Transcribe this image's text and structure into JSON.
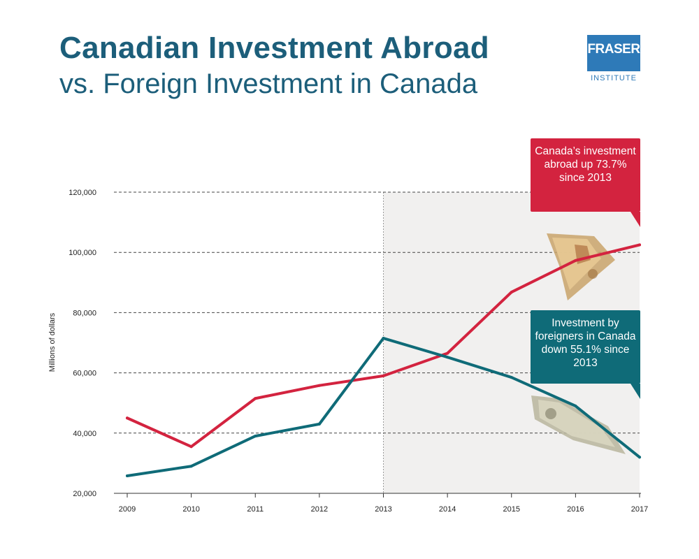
{
  "header": {
    "title": "Canadian Investment Abroad",
    "subtitle": "vs. Foreign Investment in Canada"
  },
  "logo": {
    "main": "FRASER",
    "sub": "INSTITUTE",
    "color": "#2e7ab8"
  },
  "chart_data": {
    "type": "line",
    "title": "Canadian Investment Abroad vs. Foreign Investment in Canada",
    "xlabel": "",
    "ylabel": "Millions of dollars",
    "categories": [
      "2009",
      "2010",
      "2011",
      "2012",
      "2013",
      "2014",
      "2015",
      "2016",
      "2017"
    ],
    "ylim": [
      20000,
      120000
    ],
    "yticks": [
      20000,
      40000,
      60000,
      80000,
      100000,
      120000
    ],
    "ytick_labels": [
      "20,000",
      "40,000",
      "60,000",
      "80,000",
      "100,000",
      "120,000"
    ],
    "grid": "dashed horizontal",
    "highlight_from": "2013",
    "series": [
      {
        "name": "Canadian investment abroad",
        "color": "#d3233f",
        "values": [
          45000,
          35500,
          51500,
          55800,
          59000,
          66500,
          86800,
          97300,
          102500
        ]
      },
      {
        "name": "Foreign investment in Canada",
        "color": "#0f6b78",
        "values": [
          25800,
          29000,
          39000,
          43000,
          71500,
          65200,
          58500,
          49000,
          32000
        ]
      }
    ],
    "annotations": [
      {
        "text": "Canada's investment abroad up 73.7% since 2013",
        "series": "Canadian investment abroad"
      },
      {
        "text": "Investment by foreigners in Canada down 55.1% since 2013",
        "series": "Foreign investment in Canada"
      }
    ]
  },
  "callouts": {
    "red": "Canada’s investment abroad up 73.7% since 2013",
    "teal": "Investment by foreigners in Canada down 55.1% since 2013"
  },
  "colors": {
    "title": "#1c5e7a",
    "red": "#d3233f",
    "teal": "#0f6b78",
    "highlight": "#f1f0ef"
  }
}
